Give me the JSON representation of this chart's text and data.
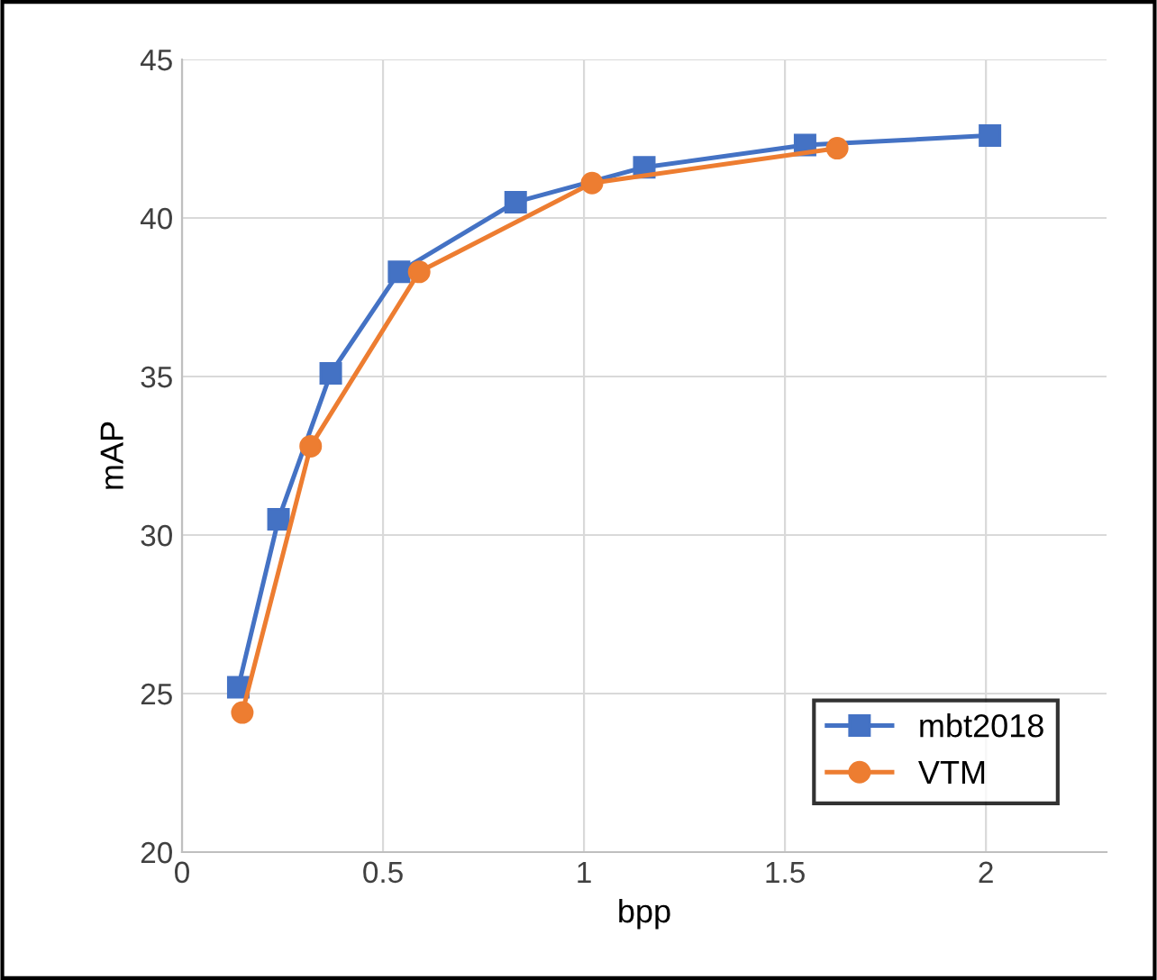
{
  "chart_data": {
    "type": "line",
    "xlabel": "bpp",
    "ylabel": "mAP",
    "series": [
      {
        "name": "mbt2018",
        "color": "#4472c4",
        "marker": "square",
        "x": [
          0.14,
          0.24,
          0.37,
          0.54,
          0.83,
          1.15,
          1.55,
          2.01
        ],
        "values": [
          25.2,
          30.5,
          35.1,
          38.3,
          40.5,
          41.6,
          42.3,
          42.6
        ]
      },
      {
        "name": "VTM",
        "color": "#ed7d31",
        "marker": "circle",
        "x": [
          0.15,
          0.32,
          0.59,
          1.02,
          1.63
        ],
        "values": [
          24.4,
          32.8,
          38.3,
          41.1,
          42.2
        ]
      }
    ],
    "xlim": [
      0,
      2.3
    ],
    "xticks": [
      0,
      0.5,
      1,
      1.5,
      2
    ],
    "ylim": [
      20,
      45
    ],
    "yticks": [
      20,
      25,
      30,
      35,
      40,
      45
    ],
    "grid": true,
    "legend": "bottom right",
    "line_style": "solid"
  }
}
